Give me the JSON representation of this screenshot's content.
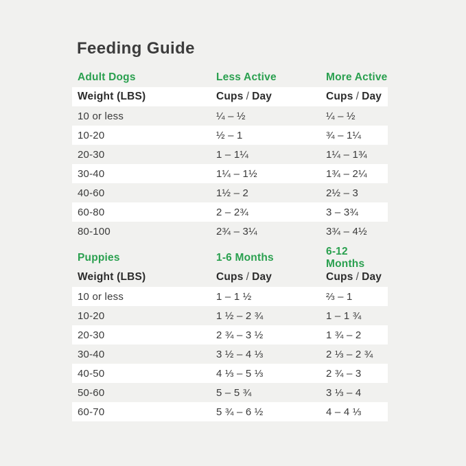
{
  "title": "Feeding Guide",
  "labels": {
    "cups": "Cups",
    "slash": "/",
    "day": "Day"
  },
  "colors": {
    "accent_green": "#2aa04f",
    "background": "#f1f1ef",
    "stripe_white": "#ffffff",
    "title_text": "#3c3c3c",
    "body_text": "#3a3a3a"
  },
  "tables": [
    {
      "section": "Adult Dogs",
      "col2": "Less Active",
      "col3": "More Active",
      "weight_label": "Weight (LBS)",
      "rows": [
        [
          "10 or less",
          "¼ – ½",
          "¼ – ½"
        ],
        [
          "10-20",
          "½ – 1",
          "¾ – 1¼"
        ],
        [
          "20-30",
          "1 – 1¼",
          "1¼ – 1¾"
        ],
        [
          "30-40",
          "1¼ – 1½",
          "1¾ – 2¼"
        ],
        [
          "40-60",
          "1½ – 2",
          "2½ – 3"
        ],
        [
          "60-80",
          "2 – 2¾",
          "3 – 3¾"
        ],
        [
          "80-100",
          "2¾ – 3¼",
          "3¾ – 4½"
        ]
      ]
    },
    {
      "section": "Puppies",
      "col2": "1-6 Months",
      "col3": "6-12 Months",
      "weight_label": "Weight (LBS)",
      "rows": [
        [
          "10 or less",
          "1 – 1 ½",
          "⅔ – 1"
        ],
        [
          "10-20",
          "1 ½ – 2 ¾",
          "1 – 1 ¾"
        ],
        [
          "20-30",
          "2 ¾ – 3 ½",
          "1 ¾ – 2"
        ],
        [
          "30-40",
          "3 ½ – 4 ⅓",
          "2 ⅓ – 2 ¾"
        ],
        [
          "40-50",
          "4 ⅓ – 5 ⅓",
          "2 ¾ – 3"
        ],
        [
          "50-60",
          "5 – 5 ¾",
          "3 ⅓ – 4"
        ],
        [
          "60-70",
          "5 ¾ – 6 ½",
          "4 – 4 ⅓"
        ]
      ]
    }
  ]
}
